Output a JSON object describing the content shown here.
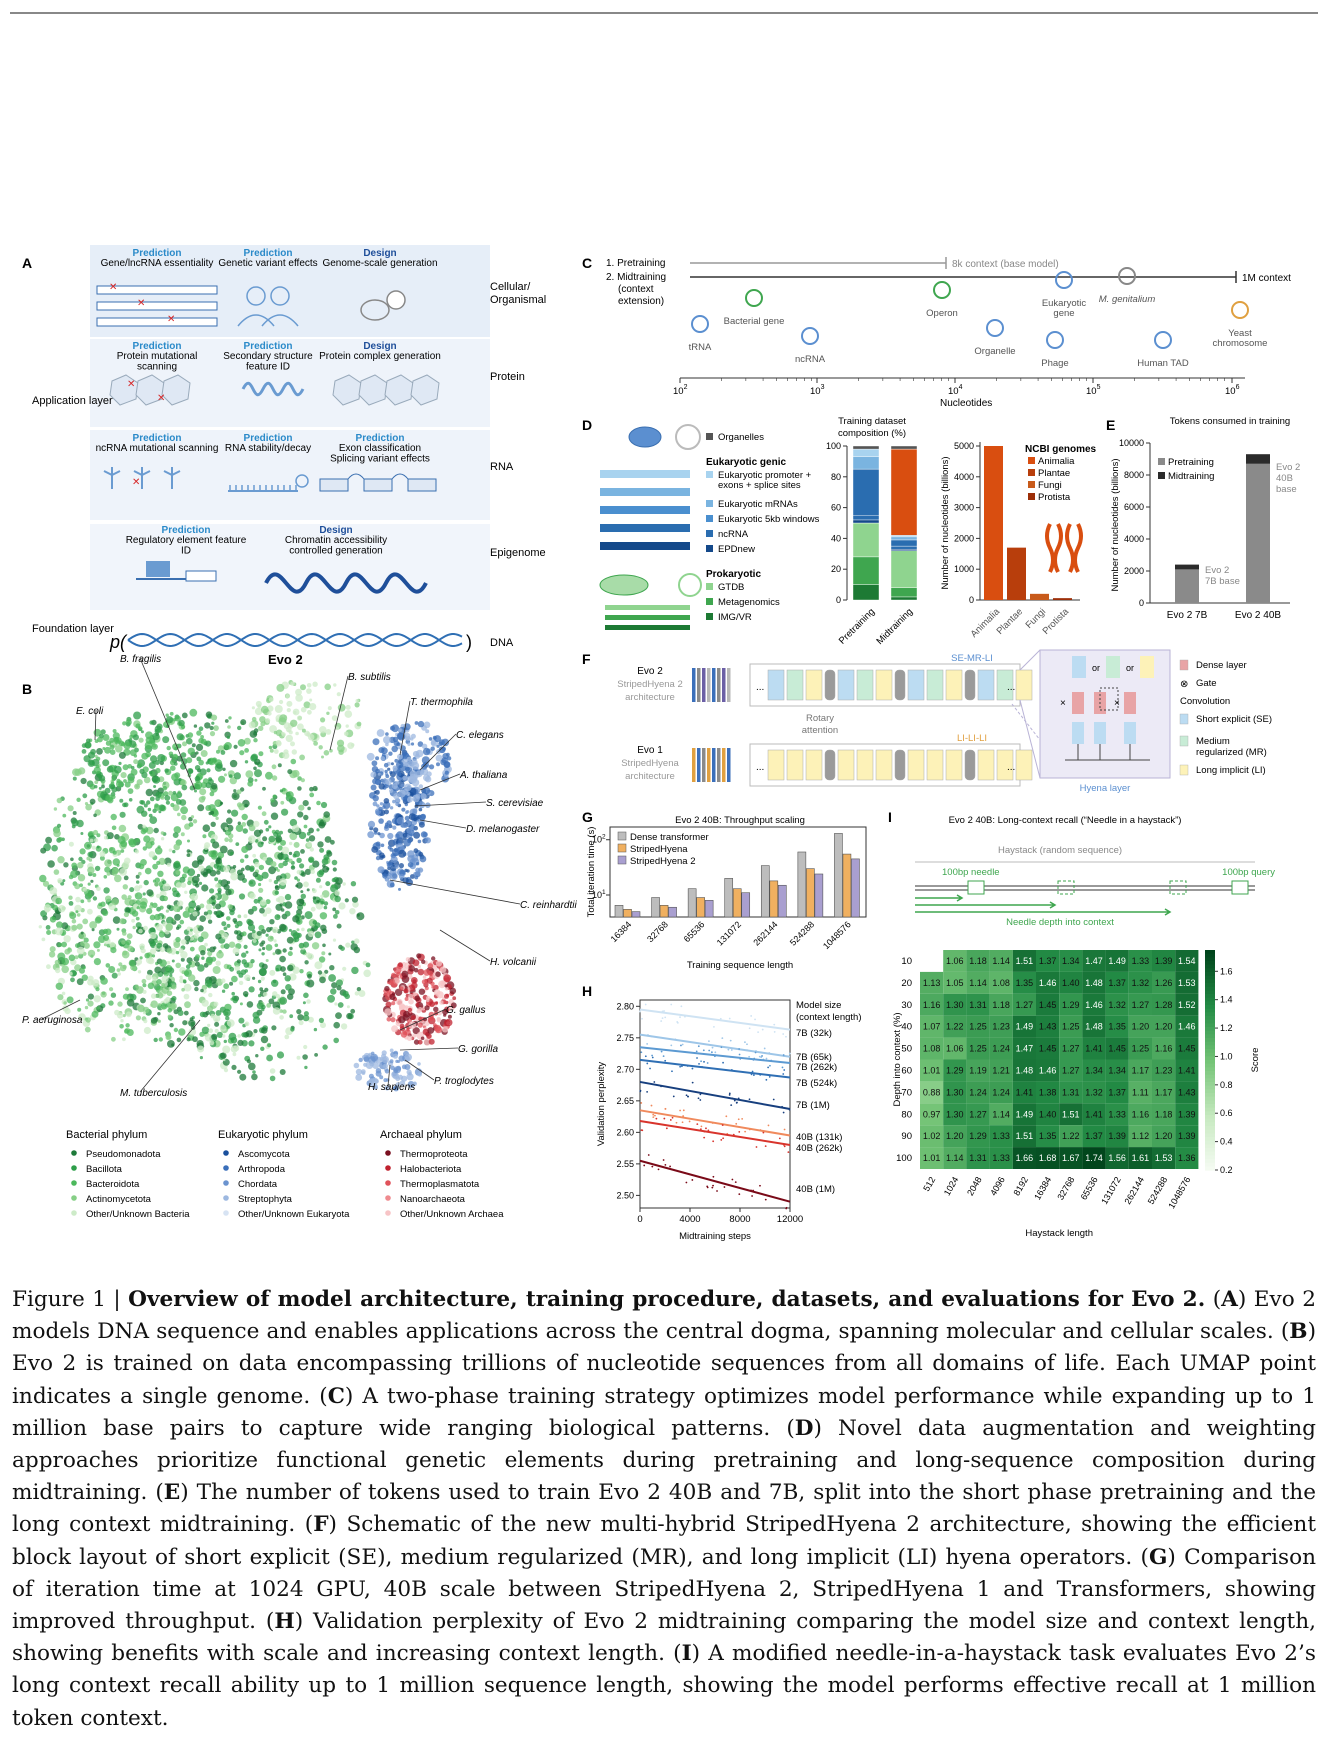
{
  "panel_letters": [
    "A",
    "B",
    "C",
    "D",
    "E",
    "F",
    "G",
    "H",
    "I"
  ],
  "panelA": {
    "rows": [
      {
        "items": [
          {
            "kind": "Prediction",
            "text": "Gene/lncRNA essentiality"
          },
          {
            "kind": "Prediction",
            "text": "Genetic variant effects"
          },
          {
            "kind": "Design",
            "text": "Genome-scale generation"
          }
        ],
        "right": "Cellular/ Organismal"
      },
      {
        "items": [
          {
            "kind": "Prediction",
            "text": "Protein mutational scanning"
          },
          {
            "kind": "Prediction",
            "text": "Secondary structure feature ID"
          },
          {
            "kind": "Design",
            "text": "Protein complex generation"
          }
        ],
        "right": "Protein"
      },
      {
        "items": [
          {
            "kind": "Prediction",
            "text": "ncRNA mutational scanning"
          },
          {
            "kind": "Prediction",
            "text": "RNA stability/decay"
          },
          {
            "kind": "Prediction",
            "text": "Exon classification Splicing variant effects"
          }
        ],
        "right": "RNA"
      },
      {
        "items": [
          {
            "kind": "Prediction",
            "text": "Regulatory element feature ID"
          },
          {
            "kind": "Design",
            "text": "Chromatin accessibility controlled generation"
          }
        ],
        "right": "Epigenome"
      }
    ],
    "application_layer": "Application layer",
    "foundation_layer": "Foundation layer",
    "dna": "DNA",
    "model": "Evo 2"
  },
  "panelB": {
    "species": [
      "B. subtilis",
      "B. fragilis",
      "E. coli",
      "T. thermophila",
      "C. elegans",
      "A. thaliana",
      "S. cerevisiae",
      "D. melanogaster",
      "C. reinhardtii",
      "H. volcanii",
      "P. aeruginosa",
      "G. gallus",
      "G. gorilla",
      "P. troglodytes",
      "H. sapiens",
      "M. tuberculosis"
    ],
    "legend": [
      {
        "title": "Bacterial phylum",
        "items": [
          {
            "label": "Pseudomonadota",
            "color": "#1e7a3a"
          },
          {
            "label": "Bacillota",
            "color": "#2e9e4a"
          },
          {
            "label": "Bacteroidota",
            "color": "#4cb85c"
          },
          {
            "label": "Actinomycetota",
            "color": "#86cf86"
          },
          {
            "label": "Other/Unknown Bacteria",
            "color": "#cdebc8"
          }
        ]
      },
      {
        "title": "Eukaryotic phylum",
        "items": [
          {
            "label": "Ascomycota",
            "color": "#1a4f9c"
          },
          {
            "label": "Arthropoda",
            "color": "#3b6fba"
          },
          {
            "label": "Chordata",
            "color": "#6b93cf"
          },
          {
            "label": "Streptophyta",
            "color": "#9db8e0"
          },
          {
            "label": "Other/Unknown Eukaryota",
            "color": "#d7e3f3"
          }
        ]
      },
      {
        "title": "Archaeal phylum",
        "items": [
          {
            "label": "Thermoproteota",
            "color": "#7a1020"
          },
          {
            "label": "Halobacteriota",
            "color": "#c0222f"
          },
          {
            "label": "Thermoplasmatota",
            "color": "#e0525a"
          },
          {
            "label": "Nanoarchaeota",
            "color": "#ef8b8f"
          },
          {
            "label": "Other/Unknown Archaea",
            "color": "#f7c4c6"
          }
        ]
      }
    ]
  },
  "panelC": {
    "phases": [
      "1. Pretraining",
      "2. Midtraining (context extension)"
    ],
    "pretrain_note": "8k context (base model)",
    "midtrain_note": "1M context",
    "items": [
      "tRNA",
      "Bacterial gene",
      "ncRNA",
      "Operon",
      "Organelle",
      "Eukaryotic gene",
      "Phage",
      "M. genitalium",
      "Human TAD",
      "Yeast chromosome"
    ],
    "axis_label": "Nucleotides",
    "ticks": [
      "10",
      "10",
      "10",
      "10",
      "10"
    ],
    "tick_exp": [
      "2",
      "3",
      "4",
      "5",
      "6"
    ]
  },
  "panelD": {
    "legend_groups": [
      {
        "title": "",
        "items": [
          {
            "label": "Organelles",
            "color": "#555555"
          }
        ]
      },
      {
        "title": "Eukaryotic genic",
        "items": [
          {
            "label": "Eukaryotic promoter + exons + splice sites",
            "color": "#a8d3ef"
          },
          {
            "label": "Eukaryotic mRNAs",
            "color": "#7ab4e0"
          },
          {
            "label": "Eukaryotic 5kb windows",
            "color": "#4a8fcf"
          },
          {
            "label": "ncRNA",
            "color": "#2a6db0"
          },
          {
            "label": "EPDnew",
            "color": "#14498a"
          }
        ]
      },
      {
        "title": "Prokaryotic",
        "items": [
          {
            "label": "GTDB",
            "color": "#8fd48f"
          },
          {
            "label": "Metagenomics",
            "color": "#3fa64f"
          },
          {
            "label": "IMG/VR",
            "color": "#1d7a34"
          }
        ]
      }
    ],
    "ncbi_title": "NCBI genomes",
    "ncbi_legend": [
      {
        "label": "Animalia",
        "color": "#d94e10"
      },
      {
        "label": "Plantae",
        "color": "#b83e0c"
      },
      {
        "label": "Fungi",
        "color": "#c85a1a"
      },
      {
        "label": "Protista",
        "color": "#9c2e08"
      }
    ]
  },
  "panelE": {
    "title": "Tokens consumed in training",
    "legend": [
      "Pretraining",
      "Midtraining"
    ],
    "bar_notes": [
      "Evo 2 7B base",
      "Evo 2 40B base"
    ]
  },
  "panelF": {
    "evo2": "Evo 2",
    "evo2_arch": "StripedHyena 2 architecture",
    "evo1": "Evo 1",
    "evo1_arch": "StripedHyena architecture",
    "se_mr_li": "SE-MR-LI",
    "li_li_li": "LI-LI-LI",
    "rotary": "Rotary attention",
    "hyena_layer": "Hyena layer",
    "or": "or",
    "legend": [
      {
        "label": "Dense layer",
        "color": "#e8a4a6"
      },
      {
        "label": "Gate",
        "color": ""
      },
      {
        "label": "Convolution",
        "color": ""
      },
      {
        "label": "Short explicit (SE)",
        "color": "#bcdcf2"
      },
      {
        "label": "Medium regularized (MR)",
        "color": "#c8ecd6"
      },
      {
        "label": "Long implicit (LI)",
        "color": "#fdf2b8"
      }
    ]
  },
  "panelI": {
    "haystack": "Haystack (random sequence)",
    "needle": "100bp needle",
    "query": "100bp query",
    "depth_note": "Needle depth into context"
  },
  "chart_data": [
    {
      "id": "D-composition",
      "type": "bar",
      "title": "Training dataset composition (%)",
      "categories": [
        "Pretraining",
        "Midtraining"
      ],
      "ylim": [
        0,
        100
      ],
      "series": [
        {
          "name": "IMG/VR",
          "values": [
            10,
            2
          ]
        },
        {
          "name": "Metagenomics",
          "values": [
            18,
            6
          ]
        },
        {
          "name": "GTDB",
          "values": [
            22,
            24
          ]
        },
        {
          "name": "EPDnew",
          "values": [
            2,
            1
          ]
        },
        {
          "name": "ncRNA",
          "values": [
            3,
            2
          ]
        },
        {
          "name": "Eukaryotic 5kb windows",
          "values": [
            30,
            4
          ]
        },
        {
          "name": "Eukaryotic mRNAs",
          "values": [
            8,
            2
          ]
        },
        {
          "name": "Eukaryotic promoter + exons + splice sites",
          "values": [
            5,
            1
          ]
        },
        {
          "name": "NCBI genomes",
          "values": [
            0,
            56
          ]
        },
        {
          "name": "Organelles",
          "values": [
            2,
            2
          ]
        }
      ]
    },
    {
      "id": "D-ncbi",
      "type": "bar",
      "title": "",
      "categories": [
        "Animalia",
        "Plantae",
        "Fungi",
        "Protista"
      ],
      "values": [
        5000,
        1700,
        200,
        60
      ],
      "ylabel": "Number of nucleotides (billions)",
      "ylim": [
        0,
        5000
      ],
      "yticks": [
        0,
        1000,
        2000,
        3000,
        4000,
        5000
      ]
    },
    {
      "id": "E",
      "type": "bar",
      "title": "Tokens consumed in training",
      "categories": [
        "Evo 2 7B",
        "Evo 2 40B"
      ],
      "ylabel": "Number of nucleotides (billions)",
      "ylim": [
        0,
        10000
      ],
      "yticks": [
        0,
        2000,
        4000,
        6000,
        8000,
        10000
      ],
      "series": [
        {
          "name": "Pretraining",
          "values": [
            2100,
            8700
          ]
        },
        {
          "name": "Midtraining",
          "values": [
            300,
            600
          ]
        }
      ]
    },
    {
      "id": "G",
      "type": "bar",
      "title": "Evo 2 40B: Throughput scaling",
      "xlabel": "Training sequence length",
      "ylabel": "Total iteration time (s)",
      "yscale": "log",
      "categories": [
        "16384",
        "32768",
        "65536",
        "131072",
        "262144",
        "524288",
        "1048576"
      ],
      "series": [
        {
          "name": "Dense transformer",
          "values": [
            6.5,
            9,
            13,
            20,
            34,
            60,
            130
          ]
        },
        {
          "name": "StripedHyena",
          "values": [
            5.5,
            6.5,
            9,
            13,
            18,
            30,
            55
          ]
        },
        {
          "name": "StripedHyena 2",
          "values": [
            5.0,
            6.0,
            8,
            11,
            15,
            24,
            45
          ]
        }
      ]
    },
    {
      "id": "H",
      "type": "line",
      "title": "",
      "xlabel": "Midtraining steps",
      "ylabel": "Validation perplexity",
      "xlim": [
        0,
        12000
      ],
      "ylim": [
        2.48,
        2.81
      ],
      "xticks": [
        0,
        4000,
        8000,
        12000
      ],
      "yticks": [
        2.5,
        2.55,
        2.6,
        2.65,
        2.7,
        2.75,
        2.8
      ],
      "legend_title": "Model size (context length)",
      "series": [
        {
          "name": "7B (32k)",
          "color": "#cfe3f3",
          "x": [
            0,
            12000
          ],
          "y": [
            2.795,
            2.763
          ]
        },
        {
          "name": "7B (65k)",
          "color": "#9ec6e8",
          "x": [
            0,
            12000
          ],
          "y": [
            2.755,
            2.72
          ]
        },
        {
          "name": "7B (262k)",
          "color": "#5c9ad2",
          "x": [
            0,
            12000
          ],
          "y": [
            2.735,
            2.71
          ]
        },
        {
          "name": "7B (524k)",
          "color": "#2f6fb4",
          "x": [
            0,
            12000
          ],
          "y": [
            2.715,
            2.687
          ]
        },
        {
          "name": "7B (1M)",
          "color": "#173f7e",
          "x": [
            0,
            12000
          ],
          "y": [
            2.68,
            2.637
          ]
        },
        {
          "name": "40B (131k)",
          "color": "#f08a5d",
          "x": [
            0,
            12000
          ],
          "y": [
            2.635,
            2.595
          ]
        },
        {
          "name": "40B (262k)",
          "color": "#d8342c",
          "x": [
            0,
            12000
          ],
          "y": [
            2.618,
            2.58
          ]
        },
        {
          "name": "40B (1M)",
          "color": "#7a0a18",
          "x": [
            0,
            12000
          ],
          "y": [
            2.555,
            2.49
          ]
        }
      ]
    },
    {
      "id": "I",
      "type": "heatmap",
      "title": "Evo 2 40B: Long-context recall (“Needle in a haystack”)",
      "xlabel": "Haystack length",
      "ylabel": "Depth into context (%)",
      "colorbar_label": "Score",
      "colorbar_ticks": [
        "0.2",
        "0.4",
        "0.6",
        "0.8",
        "1.0",
        "1.2",
        "1.4",
        "1.6"
      ],
      "x": [
        "512",
        "1024",
        "2048",
        "4096",
        "8192",
        "16384",
        "32768",
        "65536",
        "131072",
        "262144",
        "524288",
        "1048576"
      ],
      "y": [
        "10",
        "20",
        "30",
        "40",
        "50",
        "60",
        "70",
        "80",
        "90",
        "100"
      ],
      "values": [
        [
          null,
          1.06,
          1.18,
          1.14,
          1.51,
          1.37,
          1.34,
          1.47,
          1.49,
          1.33,
          1.39,
          1.54
        ],
        [
          1.13,
          1.05,
          1.14,
          1.08,
          1.35,
          1.46,
          1.4,
          1.48,
          1.37,
          1.32,
          1.26,
          1.53
        ],
        [
          1.16,
          1.3,
          1.31,
          1.18,
          1.27,
          1.45,
          1.29,
          1.46,
          1.32,
          1.27,
          1.28,
          1.52
        ],
        [
          1.07,
          1.22,
          1.25,
          1.23,
          1.49,
          1.43,
          1.25,
          1.48,
          1.35,
          1.2,
          1.2,
          1.46
        ],
        [
          1.08,
          1.06,
          1.25,
          1.24,
          1.47,
          1.45,
          1.27,
          1.41,
          1.45,
          1.25,
          1.16,
          1.45
        ],
        [
          1.01,
          1.29,
          1.19,
          1.21,
          1.48,
          1.46,
          1.27,
          1.34,
          1.34,
          1.17,
          1.23,
          1.41
        ],
        [
          0.88,
          1.3,
          1.24,
          1.24,
          1.41,
          1.38,
          1.31,
          1.32,
          1.37,
          1.11,
          1.17,
          1.43
        ],
        [
          0.97,
          1.3,
          1.27,
          1.14,
          1.49,
          1.4,
          1.51,
          1.41,
          1.33,
          1.16,
          1.18,
          1.39
        ],
        [
          1.02,
          1.2,
          1.29,
          1.33,
          1.51,
          1.35,
          1.22,
          1.37,
          1.39,
          1.12,
          1.2,
          1.39
        ],
        [
          1.01,
          1.14,
          1.31,
          1.33,
          1.66,
          1.68,
          1.67,
          1.74,
          1.56,
          1.61,
          1.53,
          1.36
        ]
      ]
    }
  ],
  "caption": [
    {
      "t": "Figure 1 | ",
      "b": false
    },
    {
      "t": "Overview of model architecture, training procedure, datasets, and evaluations for Evo 2.",
      "b": true
    },
    {
      "t": " (",
      "b": false
    },
    {
      "t": "A",
      "b": true
    },
    {
      "t": ") Evo 2 models DNA sequence and enables applications across the central dogma, spanning molecular and cellular scales. (",
      "b": false
    },
    {
      "t": "B",
      "b": true
    },
    {
      "t": ") Evo 2 is trained on data encompassing trillions of nucleotide sequences from all domains of life.  Each UMAP point indicates a single genome.  (",
      "b": false
    },
    {
      "t": "C",
      "b": true
    },
    {
      "t": ") A two-phase training strategy optimizes model performance while expanding up to 1 million base pairs to capture wide ranging biological patterns.  (",
      "b": false
    },
    {
      "t": "D",
      "b": true
    },
    {
      "t": ") Novel data augmentation and weighting approaches prioritize functional genetic elements during pretraining and long-sequence composition during midtraining. (",
      "b": false
    },
    {
      "t": "E",
      "b": true
    },
    {
      "t": ") The number of tokens used to train Evo 2 40B and 7B, split into the short phase pretraining and the long context midtraining. (",
      "b": false
    },
    {
      "t": "F",
      "b": true
    },
    {
      "t": ") Schematic of the new multi-hybrid StripedHyena 2 architecture, showing the efficient block layout of short explicit (SE), medium regularized (MR), and long implicit (LI) hyena operators.  (",
      "b": false
    },
    {
      "t": "G",
      "b": true
    },
    {
      "t": ") Comparison of iteration time at 1024 GPU, 40B scale between StripedHyena 2, StripedHyena 1 and Transformers, showing improved throughput.  (",
      "b": false
    },
    {
      "t": "H",
      "b": true
    },
    {
      "t": ") Validation perplexity of Evo 2 midtraining comparing the model size and context length, showing benefits with scale and increasing context length.  (",
      "b": false
    },
    {
      "t": "I",
      "b": true
    },
    {
      "t": ") A modified needle-in-a-haystack task evaluates Evo 2’s long context recall ability up to 1 million sequence length, showing the model performs effective recall at 1 million token context.",
      "b": false
    }
  ]
}
